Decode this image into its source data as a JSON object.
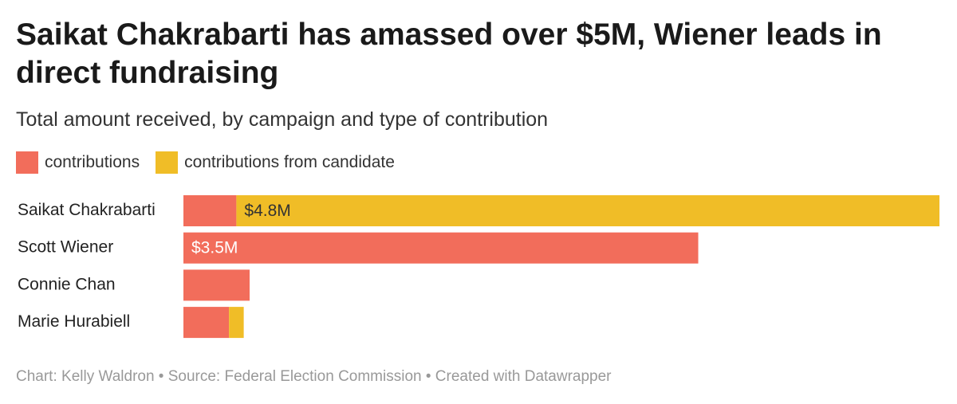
{
  "chart_data": {
    "type": "stacked-bar",
    "title": "Saikat Chakrabarti has amassed over $5M, Wiener leads in direct fundraising",
    "subtitle": "Total amount received, by campaign and type of contribution",
    "categories": [
      "Saikat Chakrabarti",
      "Scott Wiener",
      "Connie Chan",
      "Marie Hurabiell"
    ],
    "series": [
      {
        "name": "contributions",
        "color": "#f26d5b",
        "values": [
          0.36,
          3.5,
          0.45,
          0.31
        ],
        "value_labels": [
          null,
          "$3.5M",
          null,
          null
        ]
      },
      {
        "name": "contributions from candidate",
        "color": "#f0bd27",
        "values": [
          4.78,
          0,
          0,
          0.1
        ],
        "value_labels": [
          "$4.8M",
          null,
          null,
          null
        ]
      }
    ],
    "footer": "Chart: Kelly Waldron • Source: Federal Election Commission • Created with Datawrapper"
  }
}
